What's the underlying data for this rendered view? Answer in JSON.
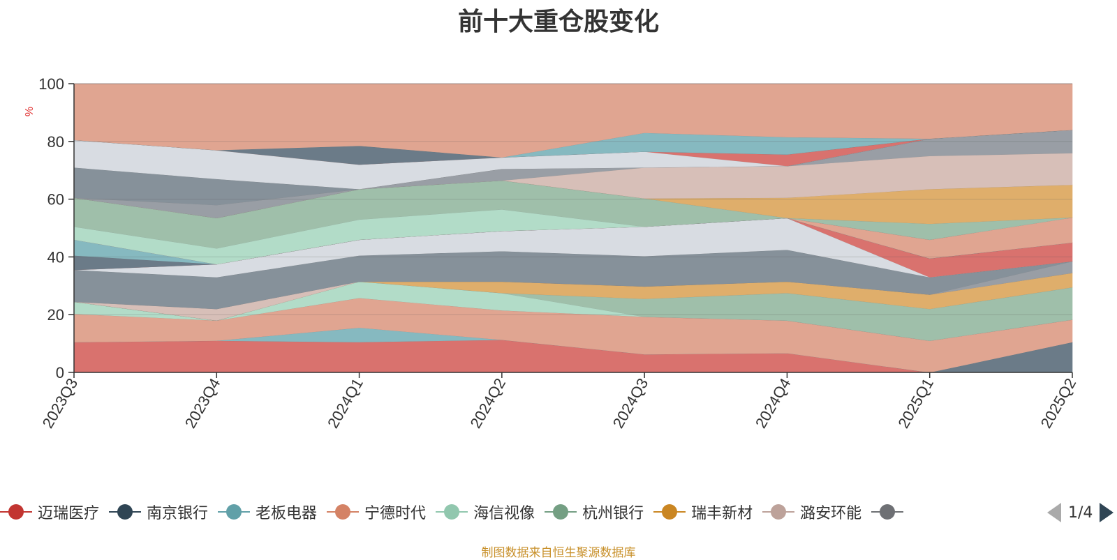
{
  "chart_data": {
    "type": "area",
    "title": "前十大重仓股变化",
    "ylabel": "%",
    "ylim": [
      0,
      100
    ],
    "yticks": [
      0,
      20,
      40,
      60,
      80,
      100
    ],
    "grid": true,
    "stacked": true,
    "categories": [
      "2023Q3",
      "2023Q4",
      "2024Q1",
      "2024Q2",
      "2024Q3",
      "2024Q4",
      "2025Q1",
      "2025Q2"
    ],
    "bands": [
      {
        "color": "#d9726e",
        "lower": [
          0,
          0,
          0,
          0,
          0,
          0,
          0,
          10.5
        ],
        "upper": [
          10.5,
          11,
          10.5,
          11.3,
          6.3,
          6.7,
          0,
          10.5
        ]
      },
      {
        "color": "#6b7b88",
        "lower": [
          0,
          0,
          0,
          0,
          0,
          0,
          0,
          0
        ],
        "upper": [
          0,
          0,
          0,
          0,
          0,
          0,
          0,
          10.5
        ]
      },
      {
        "color": "#86b9c0",
        "lower": [
          10.5,
          11,
          10.5,
          11.3,
          6.3,
          6.7,
          0,
          10.5
        ],
        "upper": [
          10.5,
          11,
          15.5,
          11.3,
          6.3,
          6.7,
          0,
          10.5
        ]
      },
      {
        "color": "#e0a591",
        "lower": [
          10.5,
          11,
          15.5,
          11.3,
          6.3,
          6.7,
          0,
          10.5
        ],
        "upper": [
          20.3,
          18,
          25.8,
          21.5,
          19.3,
          18,
          11,
          18.3
        ]
      },
      {
        "color": "#b2dcc8",
        "lower": [
          20.3,
          18,
          25.8,
          21.5,
          19.3,
          18,
          11,
          18.3
        ],
        "upper": [
          24.5,
          18,
          31.5,
          27.5,
          19.3,
          18,
          11,
          18.3
        ]
      },
      {
        "color": "#9fbfaa",
        "lower": [
          24.5,
          18,
          31.5,
          27.5,
          19.3,
          18,
          11,
          18.3
        ],
        "upper": [
          24.5,
          18,
          31.5,
          27.5,
          25.5,
          27.5,
          22,
          29.5
        ]
      },
      {
        "color": "#dfae6b",
        "lower": [
          24.5,
          18,
          31.5,
          27.5,
          25.5,
          27.5,
          22,
          29.5
        ],
        "upper": [
          24.5,
          18,
          31.5,
          31.5,
          29.8,
          31.5,
          27,
          34.5
        ]
      },
      {
        "color": "#d7bfb8",
        "lower": [
          24.5,
          18,
          31.5,
          31.5,
          29.8,
          31.5,
          27,
          34.5
        ],
        "upper": [
          24.5,
          22,
          31.5,
          31.5,
          29.8,
          31.5,
          27,
          34.5
        ]
      },
      {
        "color": "#999ea5",
        "lower": [
          24.5,
          22,
          31.5,
          31.5,
          29.8,
          31.5,
          27,
          34.5
        ],
        "upper": [
          24.5,
          22,
          31.5,
          31.5,
          29.8,
          31.5,
          27,
          38.5
        ]
      },
      {
        "color": "#86919a",
        "lower": [
          24.5,
          22,
          31.5,
          31.5,
          29.8,
          31.5,
          27,
          38.5
        ],
        "upper": [
          35.5,
          33,
          40.5,
          42,
          40.3,
          42.5,
          33,
          38.5
        ]
      },
      {
        "color": "#d8dce2",
        "lower": [
          35.5,
          33,
          40.5,
          42,
          40.3,
          42.5,
          33,
          38.5
        ],
        "upper": [
          35.5,
          37.5,
          46,
          49,
          50.5,
          53.5,
          33,
          38.5
        ]
      },
      {
        "color": "#d9726e",
        "lower": [
          35.5,
          37.5,
          46,
          49,
          50.5,
          53.5,
          33,
          38.5
        ],
        "upper": [
          35.5,
          37.5,
          46,
          49,
          50.5,
          53.5,
          39.5,
          45
        ]
      },
      {
        "color": "#6b7b88",
        "lower": [
          35.5,
          37.5,
          46,
          49,
          50.5,
          53.5,
          39.5,
          45
        ],
        "upper": [
          40.5,
          37.5,
          46,
          49,
          50.5,
          53.5,
          39.5,
          45
        ]
      },
      {
        "color": "#86b9c0",
        "lower": [
          40.5,
          37.5,
          46,
          49,
          50.5,
          53.5,
          39.5,
          45
        ],
        "upper": [
          46,
          37.5,
          46,
          49,
          50.5,
          53.5,
          39.5,
          45
        ]
      },
      {
        "color": "#e0a591",
        "lower": [
          46,
          37.5,
          46,
          49,
          50.5,
          53.5,
          39.5,
          45
        ],
        "upper": [
          46,
          37.5,
          46,
          49,
          50.5,
          53.5,
          46,
          53.7
        ]
      },
      {
        "color": "#b2dcc8",
        "lower": [
          46,
          37.5,
          46,
          49,
          50.5,
          53.5,
          46,
          53.7
        ],
        "upper": [
          50.5,
          43,
          53,
          56.5,
          50.5,
          53.5,
          46,
          53.7
        ]
      },
      {
        "color": "#9fbfaa",
        "lower": [
          50.5,
          43,
          53,
          56.5,
          50.5,
          53.5,
          46,
          53.7
        ],
        "upper": [
          60.5,
          53.5,
          63.5,
          66.5,
          60.3,
          53.5,
          51.5,
          53.7
        ]
      },
      {
        "color": "#dfae6b",
        "lower": [
          60.5,
          53.5,
          63.5,
          66.5,
          60.3,
          53.5,
          51.5,
          53.7
        ],
        "upper": [
          60.5,
          53.5,
          63.5,
          66.5,
          60.3,
          60.5,
          63.5,
          65
        ]
      },
      {
        "color": "#d7bfb8",
        "lower": [
          60.5,
          53.5,
          63.5,
          66.5,
          60.3,
          60.5,
          63.5,
          65
        ],
        "upper": [
          60.5,
          53.5,
          63.5,
          66.5,
          71,
          71.5,
          75,
          76
        ]
      },
      {
        "color": "#999ea5",
        "lower": [
          60.5,
          53.5,
          63.5,
          66.5,
          71,
          71.5,
          75,
          76
        ],
        "upper": [
          60.5,
          58,
          63.5,
          70.5,
          71,
          71.5,
          81,
          84
        ]
      },
      {
        "color": "#86919a",
        "lower": [
          60.5,
          58,
          63.5,
          70.5,
          71,
          71.5,
          81,
          84
        ],
        "upper": [
          71,
          67,
          63.5,
          70.5,
          71,
          71.5,
          81,
          84
        ]
      },
      {
        "color": "#d8dce2",
        "lower": [
          71,
          67,
          63.5,
          70.5,
          71,
          71.5,
          81,
          84
        ],
        "upper": [
          80.5,
          77,
          72,
          74.5,
          76.5,
          71.5,
          81,
          84
        ]
      },
      {
        "color": "#d9726e",
        "lower": [
          80.5,
          77,
          72,
          74.5,
          76.5,
          71.5,
          81,
          84
        ],
        "upper": [
          80.5,
          77,
          72,
          74.5,
          76.5,
          75.5,
          81,
          84
        ]
      },
      {
        "color": "#6b7b88",
        "lower": [
          80.5,
          77,
          72,
          74.5,
          76.5,
          75.5,
          81,
          84
        ],
        "upper": [
          80.5,
          77,
          78.5,
          74.5,
          76.5,
          75.5,
          81,
          84
        ]
      },
      {
        "color": "#86b9c0",
        "lower": [
          80.5,
          77,
          78.5,
          74.5,
          76.5,
          75.5,
          81,
          84
        ],
        "upper": [
          80.5,
          77,
          78.5,
          74.5,
          83,
          81.5,
          81,
          84
        ]
      },
      {
        "color": "#e0a591",
        "lower": [
          80.5,
          77,
          78.5,
          74.5,
          83,
          81.5,
          81,
          84
        ],
        "upper": [
          100,
          100,
          100,
          100,
          100,
          100,
          100,
          100
        ]
      }
    ],
    "legend": [
      {
        "label": "迈瑞医疗",
        "color": "#c23531"
      },
      {
        "label": "南京银行",
        "color": "#2f4554"
      },
      {
        "label": "老板电器",
        "color": "#61a0a8"
      },
      {
        "label": "宁德时代",
        "color": "#d48265"
      },
      {
        "label": "海信视像",
        "color": "#91c7ae"
      },
      {
        "label": "杭州银行",
        "color": "#749f83"
      },
      {
        "label": "瑞丰新材",
        "color": "#ca8622"
      },
      {
        "label": "潞安环能",
        "color": "#bda29a"
      },
      {
        "label": "",
        "color": "#6e7074"
      }
    ],
    "legend_page": "1/4"
  },
  "footnote": "制图数据来自恒生聚源数据库"
}
